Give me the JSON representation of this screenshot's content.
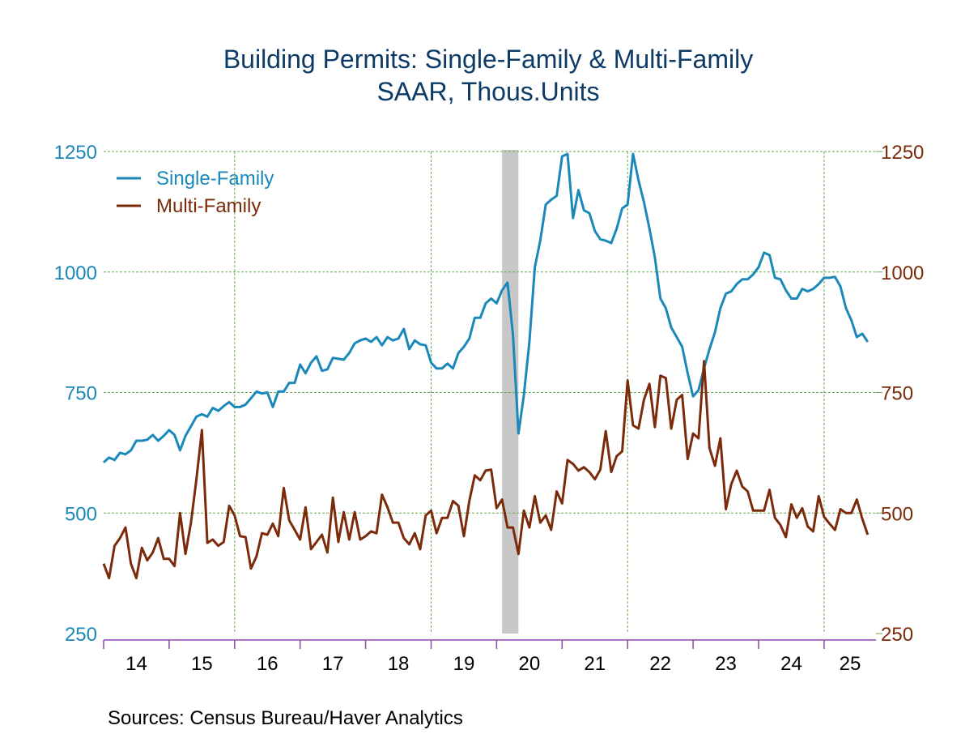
{
  "chart_data": {
    "type": "line",
    "title": "Building Permits: Single-Family & Multi-Family",
    "subtitle": "SAAR, Thous.Units",
    "xlabel": "",
    "ylabel_left": "",
    "ylabel_right": "",
    "x_start": "2014-01",
    "x_frequency": "monthly",
    "x_tick_labels": [
      "14",
      "15",
      "16",
      "17",
      "18",
      "19",
      "20",
      "21",
      "22",
      "23",
      "24",
      "25"
    ],
    "x_range": [
      "2014-01",
      "2025-09"
    ],
    "ylim_left": [
      250,
      1250
    ],
    "ylim_right": [
      250,
      1250
    ],
    "y_ticks_left": [
      "250",
      "500",
      "750",
      "1000",
      "1250"
    ],
    "y_ticks_right": [
      "250",
      "500",
      "750",
      "1000",
      "1250"
    ],
    "grid": true,
    "legend_position": "top-left",
    "recession_shading": {
      "start": "2020-02",
      "end": "2020-04"
    },
    "series": [
      {
        "name": "Single-Family",
        "color": "#1a88b8",
        "axis": "left",
        "values": [
          605,
          615,
          610,
          625,
          622,
          630,
          650,
          650,
          652,
          662,
          650,
          660,
          672,
          662,
          630,
          660,
          680,
          700,
          705,
          700,
          718,
          712,
          722,
          730,
          720,
          720,
          725,
          738,
          752,
          748,
          750,
          720,
          752,
          752,
          770,
          770,
          808,
          790,
          812,
          825,
          795,
          798,
          822,
          820,
          818,
          832,
          852,
          858,
          862,
          855,
          865,
          848,
          865,
          858,
          862,
          882,
          840,
          858,
          850,
          848,
          812,
          800,
          800,
          810,
          800,
          832,
          845,
          862,
          905,
          905,
          935,
          945,
          935,
          962,
          978,
          870,
          665,
          745,
          855,
          1010,
          1065,
          1140,
          1150,
          1158,
          1240,
          1245,
          1112,
          1170,
          1128,
          1122,
          1085,
          1068,
          1065,
          1060,
          1090,
          1132,
          1140,
          1245,
          1190,
          1145,
          1090,
          1030,
          945,
          925,
          885,
          865,
          845,
          790,
          742,
          755,
          800,
          840,
          875,
          925,
          955,
          960,
          975,
          985,
          985,
          995,
          1010,
          1040,
          1035,
          988,
          985,
          962,
          945,
          945,
          965,
          960,
          965,
          975,
          988,
          988,
          990,
          970,
          925,
          900,
          865,
          872,
          855
        ]
      },
      {
        "name": "Multi-Family",
        "color": "#7b2a0a",
        "axis": "right",
        "values": [
          395,
          365,
          432,
          448,
          470,
          395,
          365,
          428,
          402,
          418,
          448,
          405,
          405,
          390,
          500,
          415,
          480,
          570,
          672,
          438,
          445,
          432,
          440,
          515,
          495,
          452,
          450,
          385,
          410,
          458,
          455,
          478,
          452,
          552,
          485,
          465,
          445,
          512,
          425,
          440,
          455,
          418,
          532,
          440,
          502,
          445,
          502,
          445,
          452,
          462,
          458,
          538,
          512,
          480,
          480,
          448,
          435,
          458,
          425,
          495,
          505,
          458,
          490,
          490,
          525,
          515,
          452,
          525,
          578,
          568,
          588,
          590,
          510,
          528,
          470,
          470,
          415,
          505,
          470,
          535,
          480,
          495,
          465,
          545,
          520,
          610,
          602,
          588,
          595,
          585,
          570,
          590,
          670,
          585,
          618,
          628,
          775,
          682,
          675,
          735,
          768,
          678,
          785,
          780,
          675,
          735,
          745,
          612,
          665,
          655,
          815,
          635,
          598,
          655,
          508,
          560,
          588,
          555,
          545,
          505,
          505,
          505,
          548,
          490,
          475,
          450,
          518,
          490,
          510,
          472,
          462,
          535,
          492,
          478,
          465,
          508,
          500,
          500,
          528,
          488,
          455
        ]
      }
    ],
    "source": "Sources:   Census Bureau/Haver Analytics"
  },
  "colors": {
    "title": "#0d3b66",
    "left_axis": "#1a88b8",
    "right_axis": "#7b2a0a",
    "grid": "#6aa84f",
    "x_axis": "#8e44ad",
    "recession": "#c8c8c8"
  }
}
